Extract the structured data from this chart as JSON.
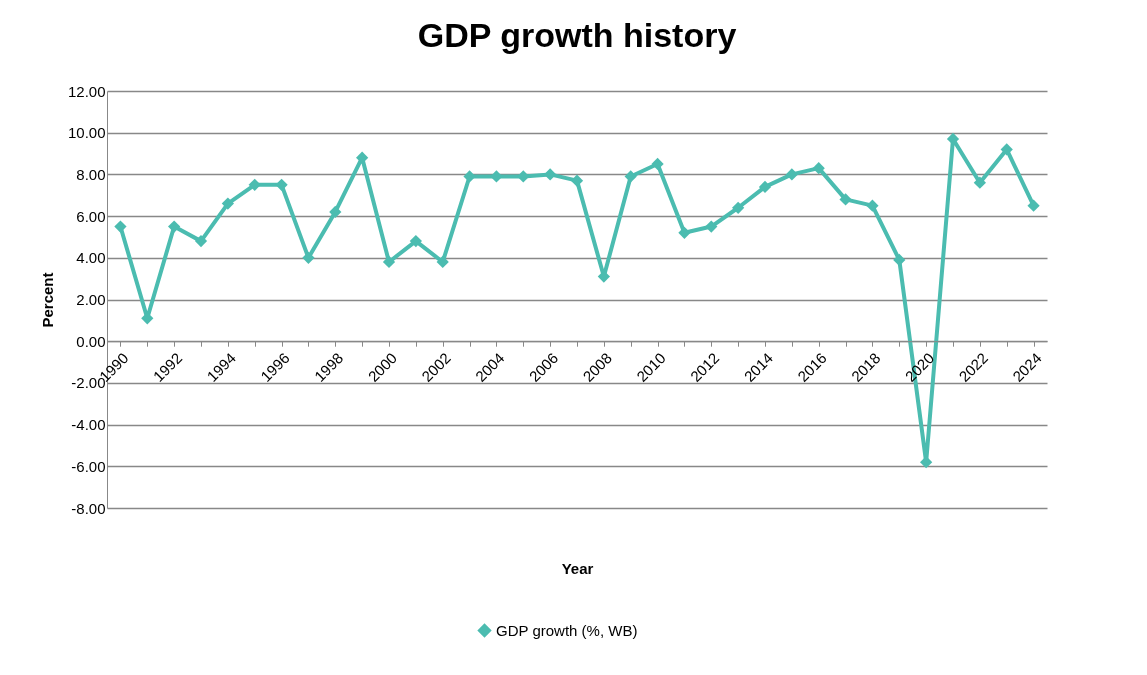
{
  "chart_data": {
    "type": "line",
    "title": "GDP growth history",
    "xlabel": "Year",
    "ylabel": "Percent",
    "categories": [
      "1990",
      null,
      "1992",
      null,
      "1994",
      null,
      "1996",
      null,
      "1998",
      null,
      "2000",
      null,
      "2002",
      null,
      "2004",
      null,
      "2006",
      null,
      "2008",
      null,
      "2010",
      null,
      "2012",
      null,
      "2014",
      null,
      "2016",
      null,
      "2018",
      null,
      "2020",
      null,
      "2022",
      null,
      "2024"
    ],
    "series": [
      {
        "name": "GDP growth (%, WB)",
        "color": "#4bbcb0",
        "values": [
          5.5,
          1.1,
          5.5,
          4.8,
          6.6,
          7.5,
          7.5,
          4.0,
          6.2,
          8.8,
          3.8,
          4.8,
          3.8,
          7.9,
          7.9,
          7.9,
          8.0,
          7.7,
          3.1,
          7.9,
          8.5,
          5.2,
          5.5,
          6.4,
          7.4,
          8.0,
          8.3,
          6.8,
          6.5,
          3.9,
          -5.8,
          9.7,
          7.6,
          9.2,
          6.5
        ]
      }
    ],
    "ylim": [
      -8,
      12
    ],
    "yticks": [
      {
        "value": -8,
        "label": "-8.00"
      },
      {
        "value": -6,
        "label": "-6.00"
      },
      {
        "value": -4,
        "label": "-4.00"
      },
      {
        "value": -2,
        "label": "-2.00"
      },
      {
        "value": 0,
        "label": "0.00"
      },
      {
        "value": 2,
        "label": "2.00"
      },
      {
        "value": 4,
        "label": "4.00"
      },
      {
        "value": 6,
        "label": "6.00"
      },
      {
        "value": 8,
        "label": "8.00"
      },
      {
        "value": 10,
        "label": "10.00"
      },
      {
        "value": 12,
        "label": "12.00"
      }
    ],
    "grid": "y",
    "legend": "bottom",
    "marker": "diamond",
    "line_style": "solid"
  }
}
